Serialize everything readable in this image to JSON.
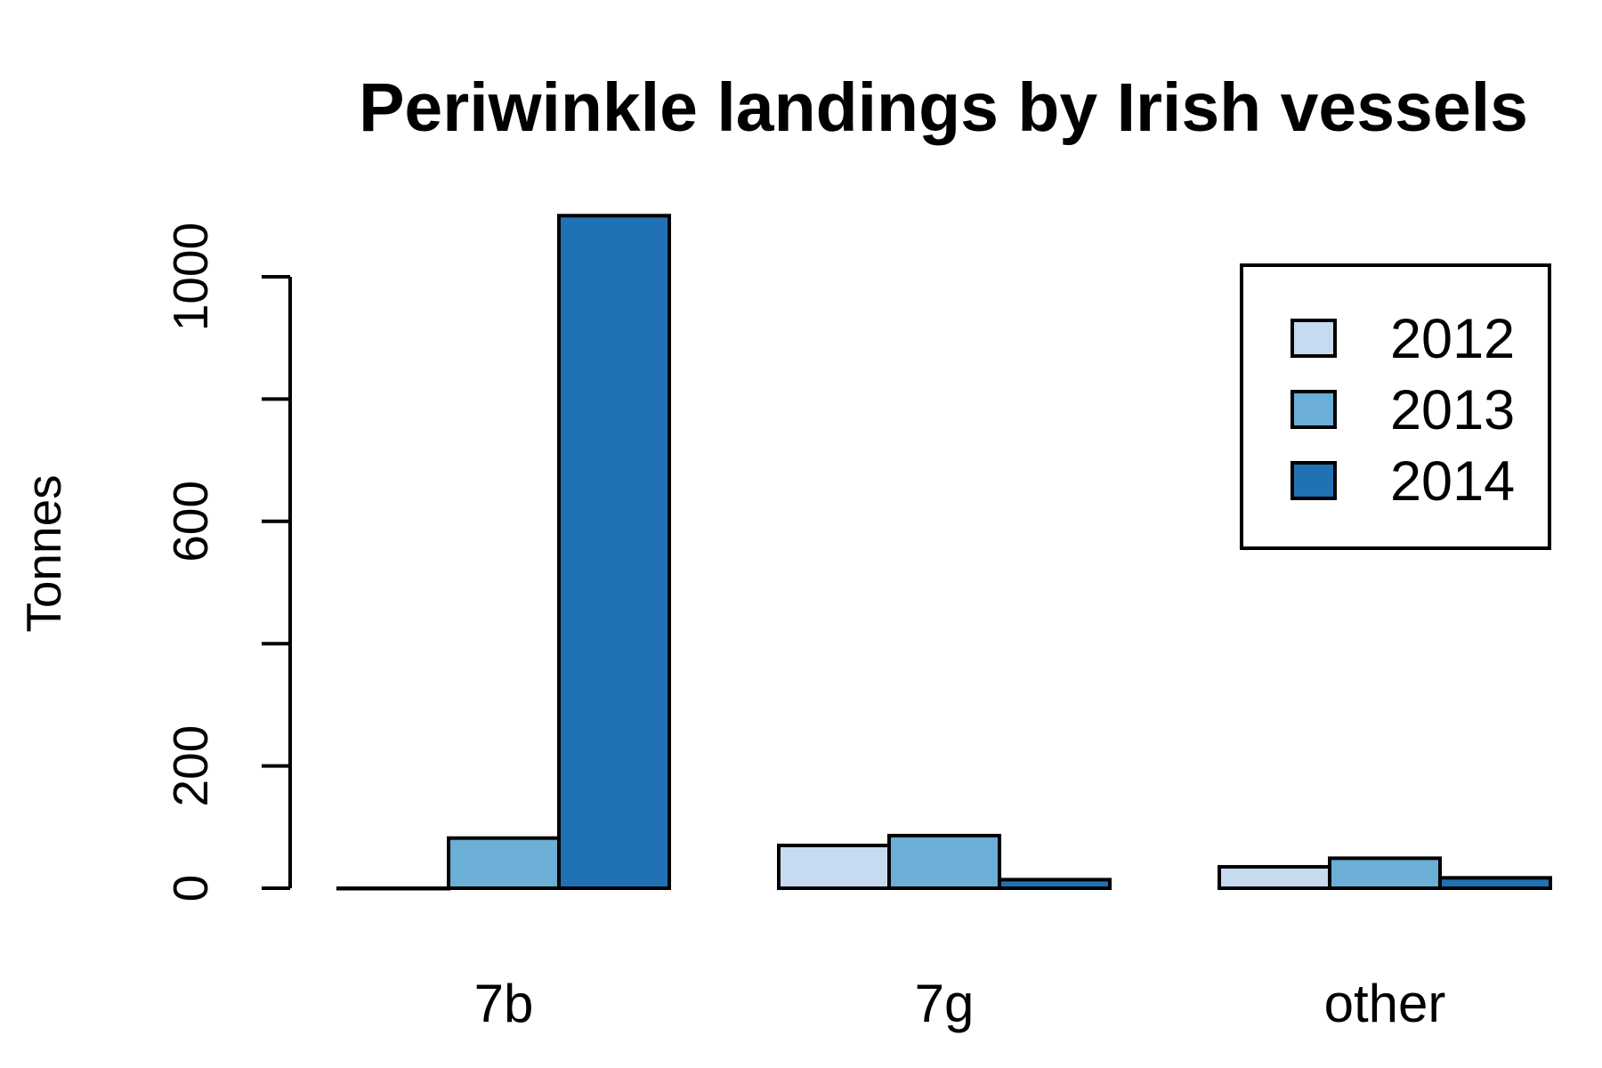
{
  "colors": {
    "series": [
      "#c6dbef",
      "#6baed6",
      "#2171b5"
    ],
    "stroke": "#000000",
    "background": "#ffffff"
  },
  "chart_data": {
    "type": "bar",
    "title": "Periwinkle landings by Irish vessels",
    "xlabel": "",
    "ylabel": "Tonnes",
    "categories": [
      "7b",
      "7g",
      "other"
    ],
    "series": [
      {
        "name": "2012",
        "values": [
          0,
          70,
          35
        ]
      },
      {
        "name": "2013",
        "values": [
          82,
          86,
          49
        ]
      },
      {
        "name": "2014",
        "values": [
          1100,
          14,
          17
        ]
      }
    ],
    "y_ticks": [
      0,
      200,
      400,
      600,
      800,
      1000
    ],
    "y_tick_labels": [
      "0",
      "200",
      "",
      "600",
      "",
      "1000"
    ],
    "ylim": [
      0,
      1100
    ],
    "grouping": "beside",
    "grid": false,
    "legend": {
      "position": "top-right",
      "boxed": true
    }
  }
}
